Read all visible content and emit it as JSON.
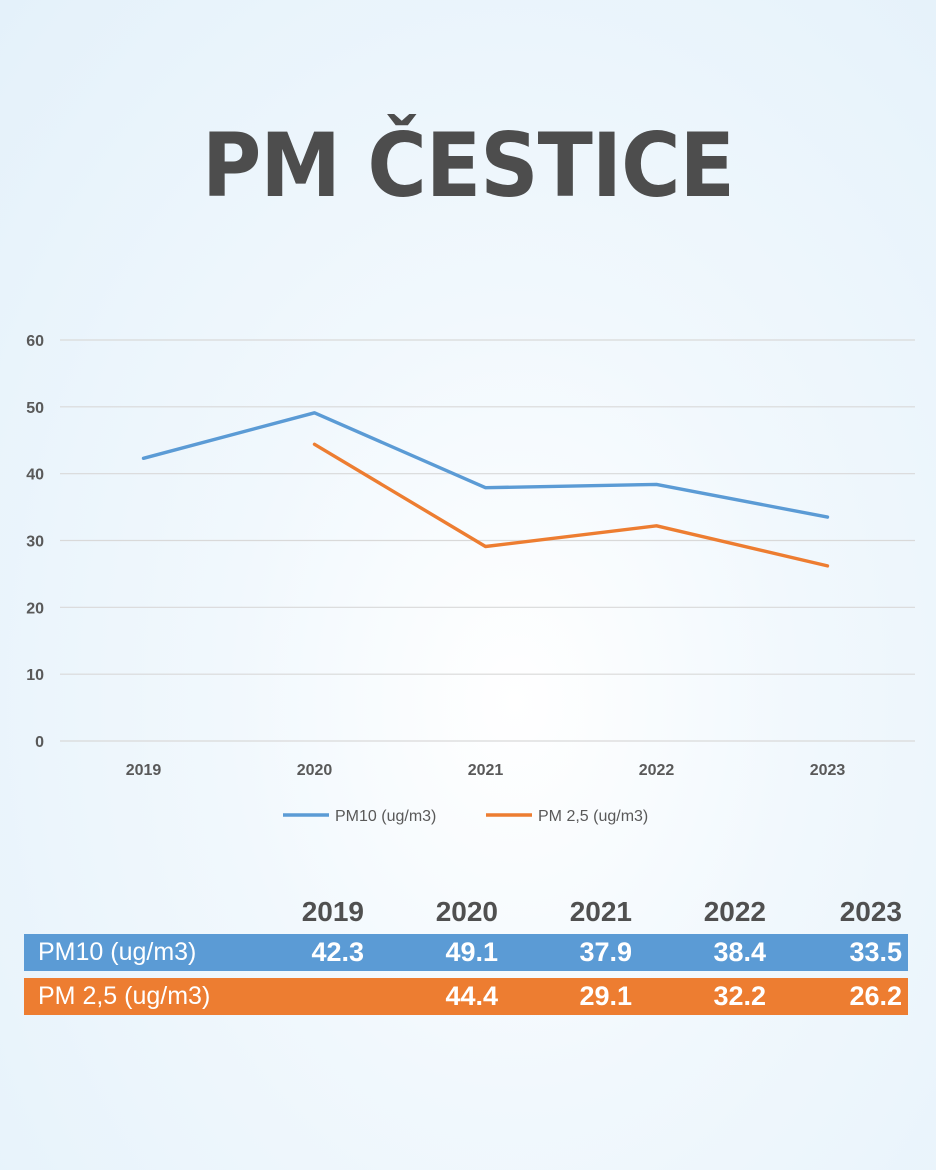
{
  "title": "PM ČESTICE",
  "colors": {
    "pm10": "#5b9bd5",
    "pm25": "#ed7d31",
    "title": "#4d4d4d",
    "grid": "#d9d9d9"
  },
  "chart_data": {
    "type": "line",
    "title": "PM ČESTICE",
    "categories": [
      "2019",
      "2020",
      "2021",
      "2022",
      "2023"
    ],
    "ylim": [
      0,
      60
    ],
    "yticks": [
      "0",
      "10",
      "20",
      "30",
      "40",
      "50",
      "60"
    ],
    "grid": true,
    "legend_position": "bottom",
    "series": [
      {
        "name": "PM10 (ug/m3)",
        "color": "#5b9bd5",
        "values": [
          42.3,
          49.1,
          37.9,
          38.4,
          33.5
        ]
      },
      {
        "name": "PM 2,5 (ug/m3)",
        "color": "#ed7d31",
        "values": [
          null,
          44.4,
          29.1,
          32.2,
          26.2
        ]
      }
    ]
  },
  "table": {
    "headers": [
      "",
      "2019",
      "2020",
      "2021",
      "2022",
      "2023"
    ],
    "rows": [
      {
        "label": "PM10 (ug/m3)",
        "values": [
          "42.3",
          "49.1",
          "37.9",
          "38.4",
          "33.5"
        ]
      },
      {
        "label": "PM 2,5 (ug/m3)",
        "values": [
          "",
          "44.4",
          "29.1",
          "32.2",
          "26.2"
        ]
      }
    ]
  }
}
